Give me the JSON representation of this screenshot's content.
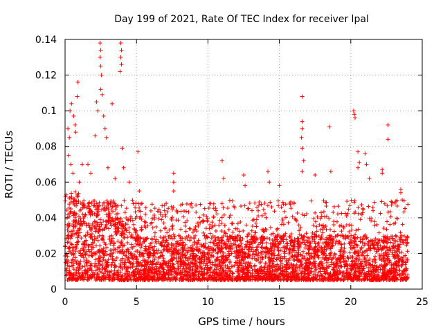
{
  "chart_data": {
    "type": "scatter",
    "title": "Day 199 of 2021, Rate Of TEC Index for receiver lpal",
    "xlabel": "GPS time / hours",
    "ylabel": "ROTI / TECUs",
    "xlim": [
      0,
      25
    ],
    "ylim": [
      0,
      0.14
    ],
    "x_ticks": [
      0,
      5,
      10,
      15,
      20,
      25
    ],
    "x_tick_labels": [
      "0",
      "5",
      "10",
      "15",
      "20",
      "25"
    ],
    "y_ticks": [
      0,
      0.02,
      0.04,
      0.06,
      0.08,
      0.1,
      0.12,
      0.14
    ],
    "y_tick_labels": [
      "0",
      "0.02",
      "0.04",
      "0.06",
      "0.08",
      "0.1",
      "0.12",
      "0.14"
    ],
    "grid": true,
    "marker": "plus",
    "color": "#ff0000",
    "series": [
      {
        "name": "ROTI",
        "baseline_band": [
          0.005,
          0.03
        ],
        "dense_points_note": "Dense cloud of thousands of points between 0.005 and 0.03 TECU/s across 0–24 h",
        "points": [
          [
            0.2,
            0.09
          ],
          [
            0.35,
            0.1
          ],
          [
            0.45,
            0.104
          ],
          [
            0.3,
            0.085
          ],
          [
            0.25,
            0.075
          ],
          [
            0.4,
            0.07
          ],
          [
            0.6,
            0.097
          ],
          [
            0.7,
            0.092
          ],
          [
            0.75,
            0.088
          ],
          [
            0.9,
            0.116
          ],
          [
            0.85,
            0.108
          ],
          [
            0.55,
            0.065
          ],
          [
            1.0,
            0.06
          ],
          [
            1.2,
            0.07
          ],
          [
            1.6,
            0.07
          ],
          [
            1.8,
            0.065
          ],
          [
            2.1,
            0.086
          ],
          [
            2.2,
            0.105
          ],
          [
            2.3,
            0.1
          ],
          [
            2.45,
            0.138
          ],
          [
            2.5,
            0.134
          ],
          [
            2.45,
            0.13
          ],
          [
            2.5,
            0.125
          ],
          [
            2.55,
            0.12
          ],
          [
            2.5,
            0.112
          ],
          [
            2.6,
            0.109
          ],
          [
            2.7,
            0.097
          ],
          [
            2.8,
            0.09
          ],
          [
            2.9,
            0.085
          ],
          [
            3.0,
            0.068
          ],
          [
            3.3,
            0.104
          ],
          [
            3.5,
            0.062
          ],
          [
            3.9,
            0.138
          ],
          [
            3.95,
            0.134
          ],
          [
            3.9,
            0.13
          ],
          [
            3.95,
            0.126
          ],
          [
            3.85,
            0.122
          ],
          [
            4.0,
            0.079
          ],
          [
            4.1,
            0.068
          ],
          [
            4.5,
            0.06
          ],
          [
            5.1,
            0.077
          ],
          [
            5.2,
            0.055
          ],
          [
            7.6,
            0.065
          ],
          [
            7.6,
            0.06
          ],
          [
            7.6,
            0.055
          ],
          [
            11.0,
            0.072
          ],
          [
            11.1,
            0.062
          ],
          [
            12.5,
            0.064
          ],
          [
            12.6,
            0.058
          ],
          [
            14.2,
            0.066
          ],
          [
            14.3,
            0.06
          ],
          [
            15.0,
            0.058
          ],
          [
            16.6,
            0.108
          ],
          [
            16.6,
            0.094
          ],
          [
            16.6,
            0.09
          ],
          [
            16.55,
            0.085
          ],
          [
            16.6,
            0.079
          ],
          [
            16.7,
            0.072
          ],
          [
            16.6,
            0.066
          ],
          [
            17.5,
            0.064
          ],
          [
            18.5,
            0.091
          ],
          [
            18.6,
            0.066
          ],
          [
            20.2,
            0.1
          ],
          [
            20.25,
            0.098
          ],
          [
            20.3,
            0.096
          ],
          [
            20.5,
            0.077
          ],
          [
            20.6,
            0.071
          ],
          [
            20.5,
            0.068
          ],
          [
            21.0,
            0.076
          ],
          [
            21.1,
            0.07
          ],
          [
            21.3,
            0.062
          ],
          [
            22.2,
            0.067
          ],
          [
            22.2,
            0.065
          ],
          [
            22.6,
            0.092
          ],
          [
            22.6,
            0.084
          ],
          [
            23.5,
            0.056
          ],
          [
            23.5,
            0.054
          ],
          [
            23.6,
            0.05
          ]
        ]
      }
    ]
  }
}
